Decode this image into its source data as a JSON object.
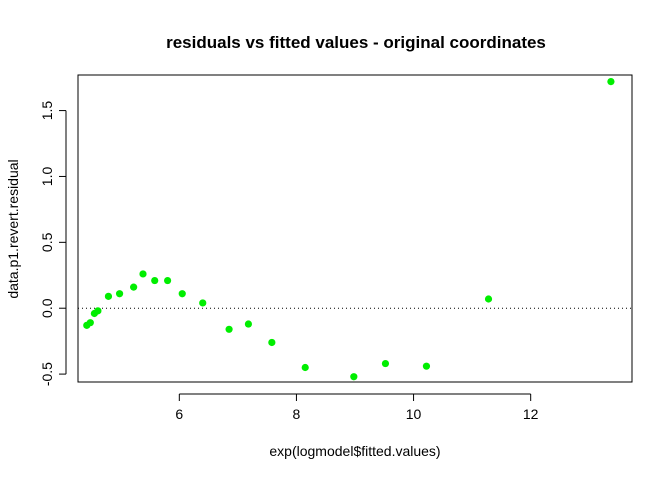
{
  "chart_data": {
    "type": "scatter",
    "title": "residuals vs fitted values - original coordinates",
    "xlabel": "exp(logmodel$fitted.values)",
    "ylabel": "data.p1.revert.residual",
    "xlim": [
      4.27,
      13.73
    ],
    "ylim": [
      -0.56,
      1.77
    ],
    "x_ticks": [
      6,
      8,
      10,
      12
    ],
    "x_tick_labels": [
      "6",
      "8",
      "10",
      "12"
    ],
    "y_ticks": [
      -0.5,
      0.0,
      0.5,
      1.0,
      1.5
    ],
    "y_tick_labels": [
      "-0.5",
      "0.0",
      "0.5",
      "1.0",
      "1.5"
    ],
    "reference_line": {
      "y": 0,
      "style": "dotted",
      "color": "#000000"
    },
    "grid": false,
    "point_color": "#00ee00",
    "x": [
      4.42,
      4.48,
      4.55,
      4.61,
      4.79,
      4.98,
      5.22,
      5.38,
      5.58,
      5.8,
      6.05,
      6.4,
      6.85,
      7.18,
      7.58,
      8.15,
      8.98,
      9.52,
      10.22,
      11.28,
      13.37
    ],
    "y": [
      -0.13,
      -0.11,
      -0.04,
      -0.02,
      0.09,
      0.11,
      0.16,
      0.26,
      0.21,
      0.21,
      0.11,
      0.04,
      -0.16,
      -0.12,
      -0.26,
      -0.45,
      -0.52,
      -0.42,
      -0.44,
      0.07,
      1.72
    ]
  }
}
